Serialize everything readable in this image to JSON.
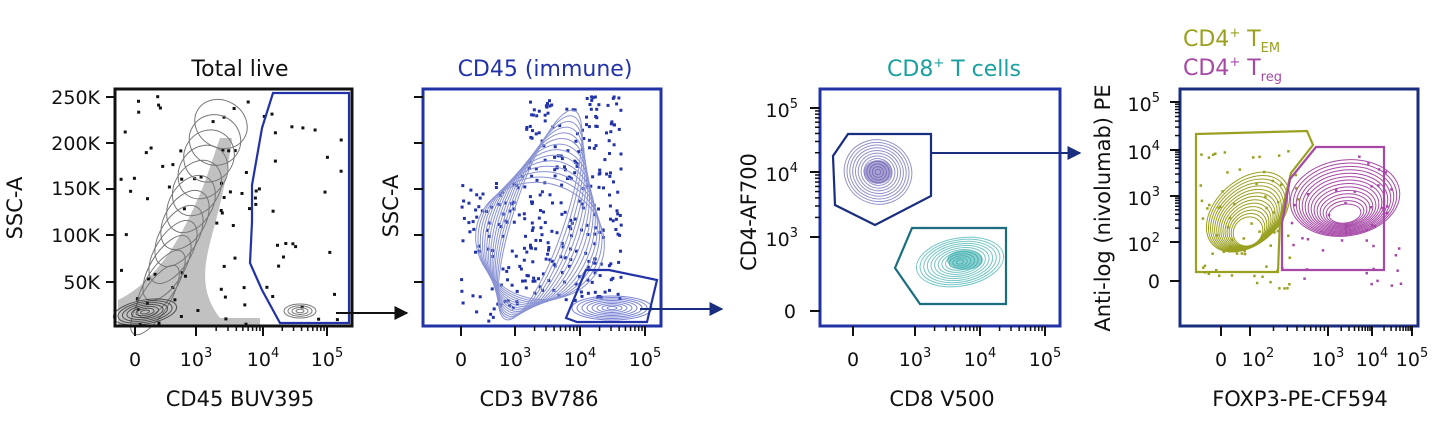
{
  "colors": {
    "total": "#1a1a1a",
    "immune": "#2233a8",
    "cd8": "#1aa0a0",
    "cd4": "#4a4aa8",
    "tem": "#9aa020",
    "treg": "#a648a6",
    "arrow": "#1a2e80"
  },
  "chart_data": [
    {
      "type": "contour",
      "title": "Total live",
      "xlabel": "CD45 BUV395",
      "ylabel": "SSC-A",
      "x_ticks": [
        "0",
        "10^3",
        "10^4",
        "10^5"
      ],
      "y_ticks": [
        "50K",
        "100K",
        "150K",
        "200K",
        "250K"
      ],
      "gate": "CD45+",
      "frame_color": "#1a1a1a"
    },
    {
      "type": "contour",
      "title": "CD45 (immune)",
      "xlabel": "CD3 BV786",
      "ylabel": "SSC-A",
      "x_ticks": [
        "0",
        "10^3",
        "10^4",
        "10^5"
      ],
      "y_ticks": [],
      "gate": "CD3+",
      "frame_color": "#2233a8"
    },
    {
      "type": "contour",
      "title": "CD8",
      "title_sup": "+",
      "title_rest": " T cells",
      "xlabel": "CD8 V500",
      "ylabel": "CD4-AF700",
      "x_ticks": [
        "0",
        "10^3",
        "10^4",
        "10^5"
      ],
      "y_ticks": [
        "0",
        "10^3",
        "10^4",
        "10^5"
      ],
      "gates": [
        "CD4+",
        "CD8+"
      ],
      "frame_color": "#2233a8"
    },
    {
      "type": "contour",
      "legend": [
        {
          "base": "CD4",
          "sup": "+",
          "mid": " T",
          "sub": "EM"
        },
        {
          "base": "CD4",
          "sup": "+",
          "mid": " T",
          "sub": "reg"
        }
      ],
      "xlabel": "FOXP3-PE-CF594",
      "ylabel": "Anti-log (nivolumab) PE",
      "x_ticks": [
        "0",
        "10^2",
        "10^3",
        "10^4",
        "10^5"
      ],
      "y_ticks": [
        "0",
        "10^2",
        "10^3",
        "10^4",
        "10^5"
      ],
      "gates": [
        "TEM",
        "Treg"
      ],
      "frame_color": "#1a2e80"
    }
  ]
}
